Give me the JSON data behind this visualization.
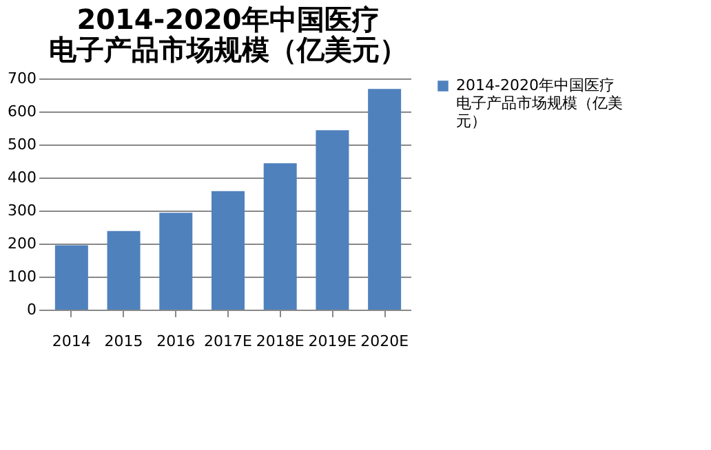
{
  "chart_data": {
    "type": "bar",
    "title": "2014-2020年中国医疗电子产品市场规模（亿美元）",
    "categories": [
      "2014",
      "2015",
      "2016",
      "2017E",
      "2018E",
      "2019E",
      "2020E"
    ],
    "series": [
      {
        "name": "2014-2020年中国医疗电子产品市场规模（亿美元）",
        "color": "#4f81bd",
        "values": [
          195,
          238,
          293,
          359,
          443,
          543,
          668
        ]
      }
    ],
    "ylim": [
      0,
      700
    ],
    "yticks": [
      0,
      100,
      200,
      300,
      400,
      500,
      600,
      700
    ],
    "grid": "y",
    "legend": "right"
  }
}
